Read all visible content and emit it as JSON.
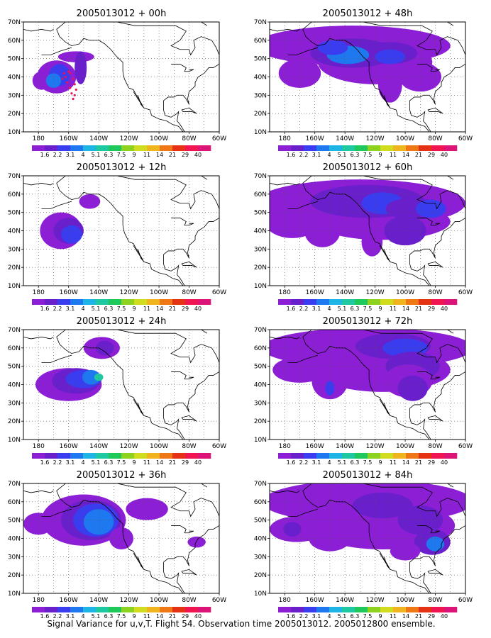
{
  "figure": {
    "caption": "Signal Variance for u,v,T. Flight 54. Observation time 2005013012. 2005012800 ensemble."
  },
  "map_axes": {
    "lon_labels": [
      "180",
      "160W",
      "140W",
      "120W",
      "100W",
      "80W",
      "60W"
    ],
    "lat_labels": [
      "10N",
      "20N",
      "30N",
      "40N",
      "50N",
      "60N",
      "70N"
    ]
  },
  "colorbar": {
    "labels": [
      "1.6",
      "2.2",
      "3.1",
      "4",
      "5.1",
      "6.3",
      "7.5",
      "9",
      "11",
      "14",
      "21",
      "29",
      "40"
    ],
    "colors": [
      "#8c1fd6",
      "#6a1fcc",
      "#3a3cf0",
      "#1e78f0",
      "#1eb4e6",
      "#1ec8a0",
      "#1ec85a",
      "#8cd21e",
      "#d2dc1e",
      "#f0b41e",
      "#f07814",
      "#e63214",
      "#f01450",
      "#dc1478"
    ]
  },
  "panels": [
    {
      "title": "2005013012 + 00h"
    },
    {
      "title": "2005013012 + 48h"
    },
    {
      "title": "2005013012 + 12h"
    },
    {
      "title": "2005013012 + 60h"
    },
    {
      "title": "2005013012 + 24h"
    },
    {
      "title": "2005013012 + 72h"
    },
    {
      "title": "2005013012 + 36h"
    },
    {
      "title": "2005013012 + 84h"
    }
  ]
}
